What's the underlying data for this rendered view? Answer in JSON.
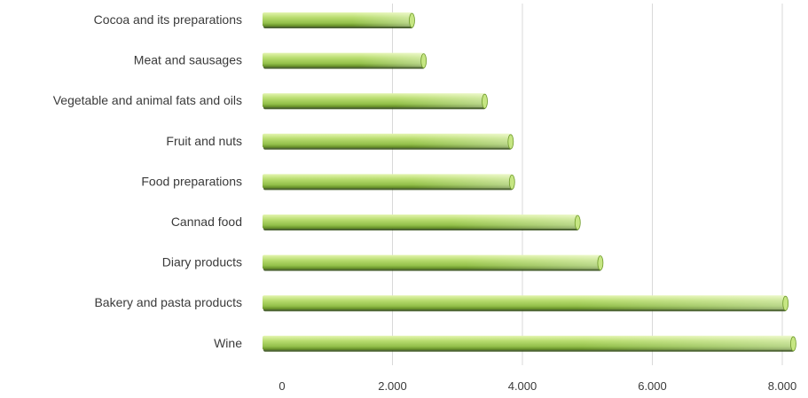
{
  "chart_data": {
    "type": "bar",
    "orientation": "horizontal",
    "title": "",
    "xlabel": "",
    "ylabel": "",
    "categories": [
      "Cocoa and its preparations",
      "Meat and sausages",
      "Vegetable and animal fats and oils",
      "Fruit and nuts",
      "Food preparations",
      "Cannad food",
      "Diary products",
      "Bakery and pasta products",
      "Wine"
    ],
    "values": [
      2300,
      2480,
      3420,
      3820,
      3840,
      4850,
      5200,
      8050,
      8170
    ],
    "xlim": [
      0,
      8000
    ],
    "ticks": [
      0,
      2000,
      4000,
      6000,
      8000
    ],
    "tick_labels": [
      "0",
      "2.000",
      "4.000",
      "6.000",
      "8.000"
    ],
    "grid": true,
    "legend": "none",
    "colors": {
      "bar_light": "#d6ee95",
      "bar_mid": "#a8d05a",
      "bar_dark": "#6e9a2a",
      "bar_shadow": "#2f4a10",
      "grid": "#d9d9d9",
      "text": "#3a3a3a"
    }
  }
}
